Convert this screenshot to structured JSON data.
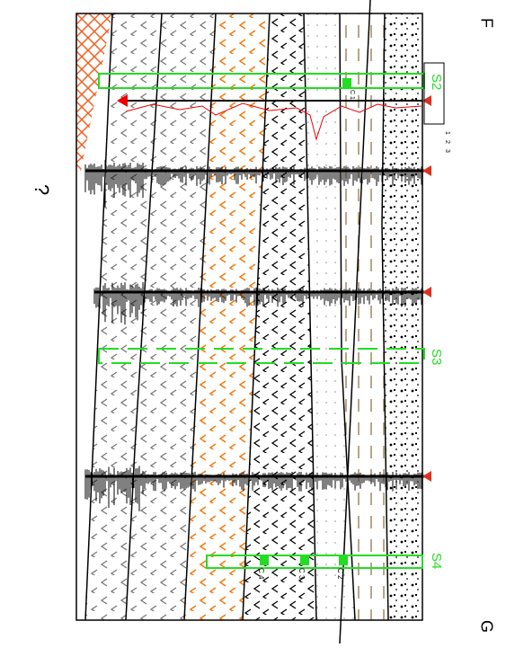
{
  "section": {
    "start_label": "F",
    "end_label": "G",
    "unknown_label": "?",
    "surveys": [
      "S2",
      "S3",
      "S4"
    ],
    "samples": [
      "C 1",
      "C 2",
      "C 3",
      "C 4"
    ],
    "scale": [
      "1",
      "2",
      "3"
    ]
  }
}
